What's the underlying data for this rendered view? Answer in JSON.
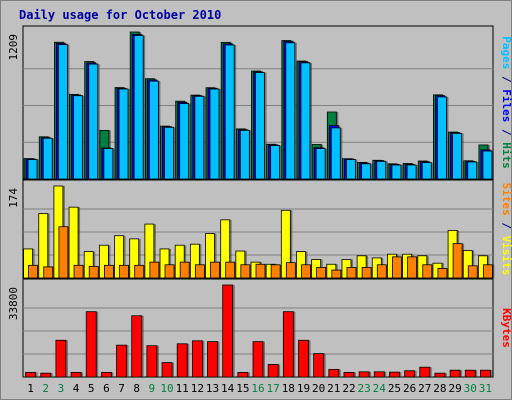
{
  "chart_data": {
    "type": "bar",
    "title": "Daily usage for October 2010",
    "categories": [
      "1",
      "2",
      "3",
      "4",
      "5",
      "6",
      "7",
      "8",
      "9",
      "10",
      "11",
      "12",
      "13",
      "14",
      "15",
      "16",
      "17",
      "18",
      "19",
      "20",
      "21",
      "22",
      "23",
      "24",
      "25",
      "26",
      "27",
      "28",
      "29",
      "30",
      "31"
    ],
    "weekend_days": [
      "2",
      "3",
      "9",
      "10",
      "16",
      "17",
      "23",
      "24",
      "30",
      "31"
    ],
    "background": "#c0c0c0",
    "grid": true,
    "panels": [
      {
        "name": "top",
        "ymax": 1209,
        "ymax_label": "1209",
        "side_label": [
          {
            "text": "Pages",
            "color": "#00c0ff"
          },
          {
            "text": " / ",
            "color": "#000080"
          },
          {
            "text": "Files",
            "color": "#0000ff"
          },
          {
            "text": " / ",
            "color": "#000080"
          },
          {
            "text": "Hits",
            "color": "#008040"
          }
        ],
        "series": [
          {
            "color": "#008040",
            "values": [
              168,
              347,
              1125,
              696,
              966,
              400,
              752,
              1209,
              825,
              435,
              640,
              690,
              751,
              1124,
              412,
              888,
              286,
              1139,
              970,
              284,
              551,
              167,
              137,
              154,
              125,
              128,
              148,
              692,
              386,
              150,
              280
            ]
          },
          {
            "color": "#0000ff",
            "values": [
              165,
              340,
              1115,
              690,
              955,
              255,
              745,
              1190,
              815,
              430,
              630,
              685,
              745,
              1112,
              405,
              880,
              280,
              1131,
              963,
              258,
              440,
              165,
              131,
              151,
              120,
              120,
              141,
              685,
              381,
              145,
              240
            ]
          },
          {
            "color": "#00c0ff",
            "values": [
              160,
              335,
              1105,
              685,
              945,
              250,
              740,
              1180,
              805,
              425,
              620,
              680,
              740,
              1102,
              400,
              875,
              275,
              1120,
              955,
              250,
              420,
              160,
              125,
              145,
              115,
              115,
              135,
              675,
              375,
              140,
              230
            ]
          }
        ]
      },
      {
        "name": "middle",
        "ymax": 174,
        "ymax_label": "174",
        "side_label": [
          {
            "text": "Sites",
            "color": "#ff8000"
          },
          {
            "text": " / ",
            "color": "#000080"
          },
          {
            "text": "Visits",
            "color": "#ffff00"
          }
        ],
        "series": [
          {
            "color": "#ffff00",
            "values": [
              55,
              122,
              174,
              134,
              50,
              62,
              80,
              74,
              102,
              55,
              62,
              64,
              84,
              110,
              51,
              30,
              26,
              128,
              50,
              35,
              26,
              35,
              42,
              38,
              45,
              45,
              42,
              28,
              90,
              52,
              42
            ]
          },
          {
            "color": "#ff8000",
            "values": [
              24,
              21,
              97,
              24,
              22,
              24,
              24,
              24,
              30,
              25,
              30,
              25,
              30,
              30,
              25,
              26,
              25,
              29,
              25,
              20,
              15,
              20,
              20,
              25,
              40,
              40,
              25,
              18,
              65,
              23,
              25
            ]
          }
        ]
      },
      {
        "name": "bottom",
        "ymax": 33800,
        "ymax_label": "33800",
        "side_label": [
          {
            "text": "KBytes",
            "color": "#ff0000"
          }
        ],
        "series": [
          {
            "color": "#ff0000",
            "values": [
              1700,
              1400,
              13500,
              1700,
              24000,
              1700,
              11700,
              22500,
              11500,
              5300,
              12200,
              13300,
              13000,
              33800,
              1700,
              13000,
              4600,
              24000,
              13500,
              8600,
              2800,
              1700,
              1900,
              1900,
              1800,
              2300,
              3600,
              1400,
              2500,
              2500,
              2500
            ]
          }
        ]
      }
    ]
  }
}
